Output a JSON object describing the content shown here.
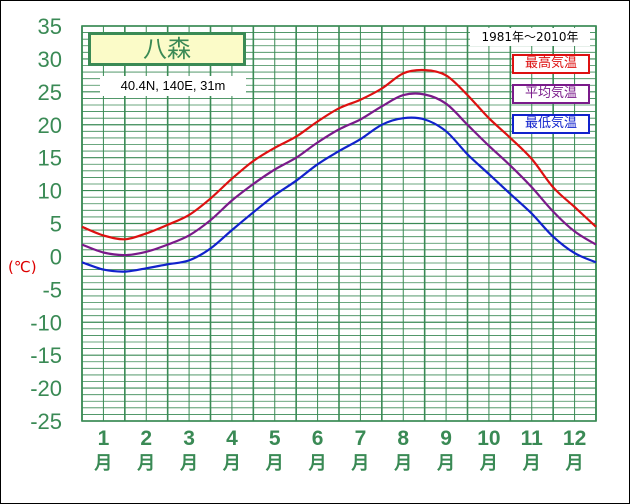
{
  "chart_data": {
    "type": "line",
    "title": "八森",
    "subtitle": "40.4N,  140E,  31m",
    "period": "1981年〜2010年",
    "unit_label": "(℃)",
    "ylim": [
      -25,
      35
    ],
    "yticks": [
      "35",
      "30",
      "25",
      "20",
      "15",
      "10",
      "5",
      "0",
      "-5",
      "-10",
      "-15",
      "-20",
      "-25"
    ],
    "ytick_values": [
      35,
      30,
      25,
      20,
      15,
      10,
      5,
      0,
      -5,
      -10,
      -15,
      -20,
      -25
    ],
    "months": [
      {
        "num": "1",
        "unit": "月"
      },
      {
        "num": "2",
        "unit": "月"
      },
      {
        "num": "3",
        "unit": "月"
      },
      {
        "num": "4",
        "unit": "月"
      },
      {
        "num": "5",
        "unit": "月"
      },
      {
        "num": "6",
        "unit": "月"
      },
      {
        "num": "7",
        "unit": "月"
      },
      {
        "num": "8",
        "unit": "月"
      },
      {
        "num": "9",
        "unit": "月"
      },
      {
        "num": "10",
        "unit": "月"
      },
      {
        "num": "11",
        "unit": "月"
      },
      {
        "num": "12",
        "unit": "月"
      }
    ],
    "grid": true,
    "legend_position": "top-right",
    "series": [
      {
        "name": "最高気温",
        "color": "#dd1111",
        "x": [
          0,
          0.5,
          1,
          1.5,
          2,
          2.5,
          3,
          3.5,
          4,
          4.5,
          5,
          5.5,
          6,
          6.5,
          7,
          7.5,
          8,
          8.5,
          9,
          9.5,
          10,
          10.5,
          11,
          11.5,
          12
        ],
        "y": [
          4.5,
          3.2,
          2.6,
          3.5,
          4.8,
          6.3,
          8.8,
          11.8,
          14.5,
          16.5,
          18.2,
          20.5,
          22.5,
          23.8,
          25.5,
          27.8,
          28.3,
          27.5,
          24.5,
          21.0,
          18.0,
          14.8,
          10.5,
          7.5,
          4.5
        ]
      },
      {
        "name": "平均気温",
        "color": "#7a1a8a",
        "x": [
          0,
          0.5,
          1,
          1.5,
          2,
          2.5,
          3,
          3.5,
          4,
          4.5,
          5,
          5.5,
          6,
          6.5,
          7,
          7.5,
          8,
          8.5,
          9,
          9.5,
          10,
          10.5,
          11,
          11.5,
          12
        ],
        "y": [
          1.8,
          0.6,
          0.2,
          0.7,
          1.8,
          3.2,
          5.5,
          8.5,
          11.0,
          13.2,
          15.0,
          17.3,
          19.3,
          20.8,
          22.8,
          24.5,
          24.6,
          23.2,
          20.0,
          16.8,
          13.8,
          10.5,
          6.8,
          3.8,
          1.8
        ]
      },
      {
        "name": "最低気温",
        "color": "#1122cc",
        "x": [
          0,
          0.5,
          1,
          1.5,
          2,
          2.5,
          3,
          3.5,
          4,
          4.5,
          5,
          5.5,
          6,
          6.5,
          7,
          7.5,
          8,
          8.5,
          9,
          9.5,
          10,
          10.5,
          11,
          11.5,
          12
        ],
        "y": [
          -0.9,
          -2.0,
          -2.3,
          -1.8,
          -1.2,
          -0.6,
          1.2,
          4.0,
          6.7,
          9.3,
          11.5,
          14.0,
          16.0,
          17.8,
          20.0,
          21.0,
          20.8,
          19.0,
          15.5,
          12.5,
          9.5,
          6.5,
          3.0,
          0.5,
          -0.9
        ]
      }
    ]
  },
  "colors": {
    "grid": "#3a8a55",
    "axis_text": "#3a8a55",
    "title_bg": "#fbfbc8"
  }
}
